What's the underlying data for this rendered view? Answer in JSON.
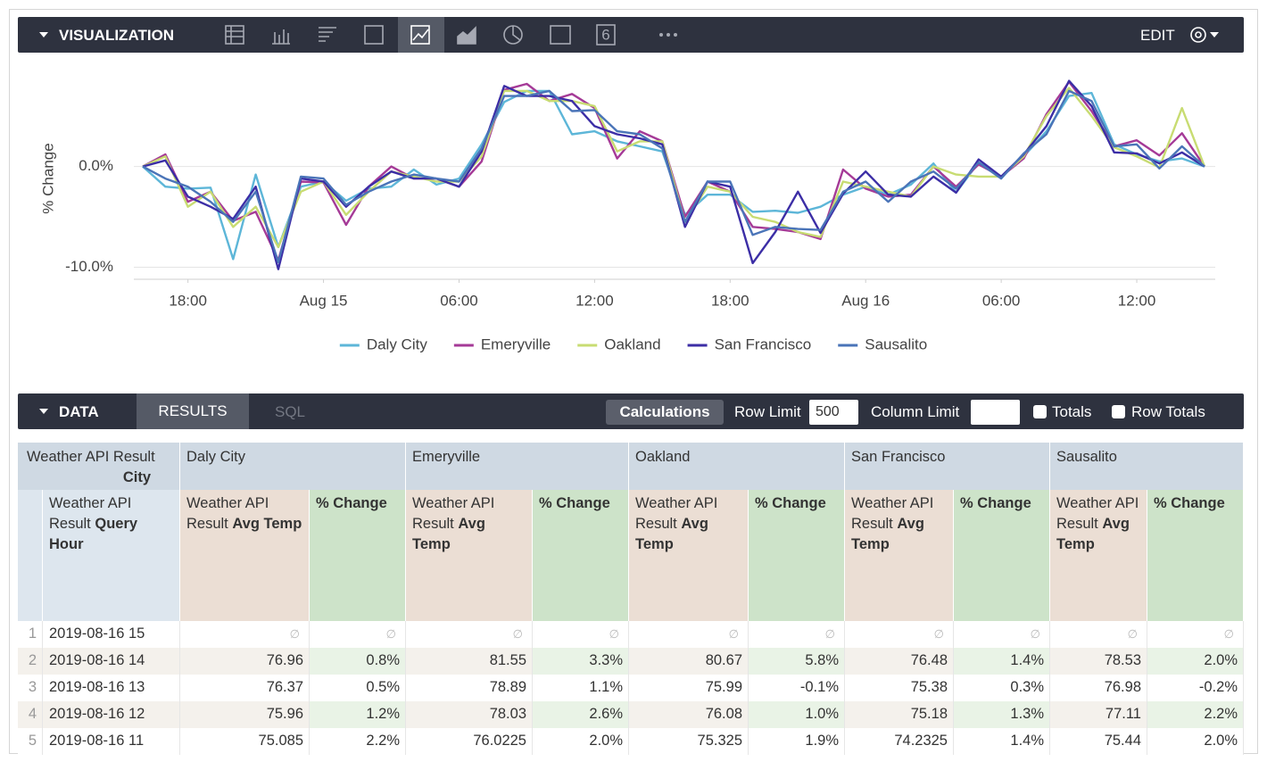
{
  "toolbar": {
    "title": "VISUALIZATION",
    "single_value_icon": "6",
    "edit": "EDIT"
  },
  "chart_data": {
    "type": "line",
    "y_label": "% Change",
    "x": [
      "2019-08-14 16",
      "2019-08-14 17",
      "2019-08-14 18",
      "2019-08-14 19",
      "2019-08-14 20",
      "2019-08-14 21",
      "2019-08-14 22",
      "2019-08-14 23",
      "2019-08-15 00",
      "2019-08-15 01",
      "2019-08-15 02",
      "2019-08-15 03",
      "2019-08-15 04",
      "2019-08-15 05",
      "2019-08-15 06",
      "2019-08-15 07",
      "2019-08-15 08",
      "2019-08-15 09",
      "2019-08-15 10",
      "2019-08-15 11",
      "2019-08-15 12",
      "2019-08-15 13",
      "2019-08-15 14",
      "2019-08-15 15",
      "2019-08-15 16",
      "2019-08-15 17",
      "2019-08-15 18",
      "2019-08-15 19",
      "2019-08-15 20",
      "2019-08-15 21",
      "2019-08-15 22",
      "2019-08-15 23",
      "2019-08-16 00",
      "2019-08-16 01",
      "2019-08-16 02",
      "2019-08-16 03",
      "2019-08-16 04",
      "2019-08-16 05",
      "2019-08-16 06",
      "2019-08-16 07",
      "2019-08-16 08",
      "2019-08-16 09",
      "2019-08-16 10",
      "2019-08-16 11",
      "2019-08-16 12",
      "2019-08-16 13",
      "2019-08-16 14",
      "2019-08-16 15"
    ],
    "xticks": [
      {
        "value": "2019-08-14 18",
        "label": "18:00"
      },
      {
        "value": "2019-08-15 00",
        "label": "Aug 15"
      },
      {
        "value": "2019-08-15 06",
        "label": "06:00"
      },
      {
        "value": "2019-08-15 12",
        "label": "12:00"
      },
      {
        "value": "2019-08-15 18",
        "label": "18:00"
      },
      {
        "value": "2019-08-16 00",
        "label": "Aug 16"
      },
      {
        "value": "2019-08-16 06",
        "label": "06:00"
      },
      {
        "value": "2019-08-16 12",
        "label": "12:00"
      }
    ],
    "ylim": [
      -11.2,
      9
    ],
    "yticks": [
      {
        "value": 0,
        "label": "0.0%"
      },
      {
        "value": -10,
        "label": "-10.0%"
      }
    ],
    "grid": true,
    "legend": "bottom",
    "series": [
      {
        "name": "Daly City",
        "color": "#5db6d8",
        "values": [
          0,
          -2.0,
          -2.2,
          -2.1,
          -9.2,
          -0.8,
          -8.0,
          -2.0,
          -1.5,
          -3.4,
          -2.2,
          -2.0,
          -0.3,
          -1.8,
          -1.2,
          2.2,
          6.4,
          7.5,
          7.5,
          3.2,
          3.5,
          2.5,
          2.0,
          1.5,
          -4.8,
          -2.8,
          -2.8,
          -4.5,
          -4.4,
          -4.6,
          -4.0,
          -2.8,
          -2.0,
          -2.8,
          -1.8,
          0.3,
          -2.6,
          0.4,
          -1.0,
          1.0,
          3.5,
          7.0,
          7.3,
          2.2,
          1.2,
          0.5,
          0.8,
          0
        ]
      },
      {
        "name": "Emeryville",
        "color": "#a53a97",
        "values": [
          0,
          1.2,
          -3.5,
          -2.5,
          -5.4,
          -4.5,
          -9.3,
          -1.5,
          -1.6,
          -5.8,
          -2.0,
          0.0,
          -1.2,
          -1.2,
          -2.0,
          0.5,
          7.6,
          8.2,
          6.5,
          7.2,
          5.8,
          0.8,
          3.5,
          2.5,
          -5.0,
          -1.5,
          -2.5,
          -6.0,
          -6.2,
          -6.5,
          -7.2,
          -0.3,
          -2.2,
          -3.0,
          -2.8,
          0.0,
          -2.0,
          0.2,
          -1.0,
          0.8,
          5.2,
          8.4,
          5.5,
          2.0,
          2.6,
          1.1,
          3.3,
          0
        ]
      },
      {
        "name": "Oakland",
        "color": "#c8dc72",
        "values": [
          0,
          1.0,
          -4.0,
          -2.5,
          -6.0,
          -4.0,
          -8.0,
          -2.5,
          -1.5,
          -4.8,
          -2.5,
          -0.5,
          -1.0,
          -1.5,
          -1.5,
          1.0,
          7.5,
          7.5,
          6.5,
          6.5,
          6.0,
          1.5,
          2.5,
          2.5,
          -5.5,
          -2.0,
          -2.5,
          -5.0,
          -5.5,
          -6.5,
          -7.0,
          -1.5,
          -2.0,
          -2.5,
          -3.0,
          0.0,
          -0.8,
          -1.0,
          -1.0,
          1.0,
          5.0,
          7.8,
          5.0,
          1.9,
          1.0,
          -0.1,
          5.8,
          0
        ]
      },
      {
        "name": "San Francisco",
        "color": "#3c2ea6",
        "values": [
          0,
          0.6,
          -3.0,
          -4.0,
          -5.2,
          -2.0,
          -10.2,
          -1.2,
          -1.5,
          -4.0,
          -2.0,
          -0.5,
          -1.2,
          -1.2,
          -2.0,
          1.5,
          8.0,
          7.0,
          7.0,
          6.5,
          4.0,
          3.2,
          2.8,
          2.2,
          -6.0,
          -1.5,
          -2.0,
          -9.6,
          -6.5,
          -2.5,
          -6.6,
          -2.7,
          -0.5,
          -2.8,
          -3.0,
          -1.0,
          -2.6,
          0.7,
          -1.0,
          1.2,
          4.0,
          8.5,
          6.0,
          1.4,
          1.3,
          0.3,
          1.4,
          0
        ]
      },
      {
        "name": "Sausalito",
        "color": "#4a74b8",
        "values": [
          0,
          -1.2,
          -2.0,
          -3.5,
          -5.5,
          -2.5,
          -9.5,
          -1.0,
          -1.2,
          -3.8,
          -2.5,
          -1.5,
          -0.8,
          -1.2,
          -1.5,
          1.8,
          7.0,
          7.0,
          7.5,
          5.5,
          5.6,
          3.5,
          3.2,
          1.8,
          -5.5,
          -1.5,
          -1.5,
          -6.8,
          -6.0,
          -6.2,
          -6.3,
          -2.5,
          -1.5,
          -3.5,
          -1.5,
          -0.5,
          -2.2,
          0.4,
          -1.2,
          1.3,
          3.2,
          7.5,
          6.5,
          2.0,
          2.2,
          -0.2,
          2.0,
          0
        ]
      }
    ]
  },
  "data_bar": {
    "title": "DATA",
    "tabs": [
      "RESULTS",
      "SQL"
    ],
    "calculations": "Calculations",
    "row_limit_label": "Row Limit",
    "row_limit": 500,
    "column_limit_label": "Column Limit",
    "checkboxes": [
      "Totals",
      "Row Totals"
    ]
  },
  "table": {
    "pivot_label": "Weather API Result",
    "pivot_name": "City",
    "pivots": [
      "Daly City",
      "Emeryville",
      "Oakland",
      "San Francisco",
      "Sausalito"
    ],
    "dimension": {
      "prefix": "Weather API Result",
      "name": "Query Hour"
    },
    "measure": {
      "prefix": "Weather API Result",
      "name": "Avg Temp"
    },
    "calculation": "% Change",
    "rows": [
      {
        "n": 1,
        "hour": "2019-08-16 15",
        "cells": [
          null,
          null,
          null,
          null,
          null,
          null,
          null,
          null,
          null,
          null
        ]
      },
      {
        "n": 2,
        "hour": "2019-08-16 14",
        "cells": [
          "76.96",
          "0.8%",
          "81.55",
          "3.3%",
          "80.67",
          "5.8%",
          "76.48",
          "1.4%",
          "78.53",
          "2.0%"
        ]
      },
      {
        "n": 3,
        "hour": "2019-08-16 13",
        "cells": [
          "76.37",
          "0.5%",
          "78.89",
          "1.1%",
          "75.99",
          "-0.1%",
          "75.38",
          "0.3%",
          "76.98",
          "-0.2%"
        ]
      },
      {
        "n": 4,
        "hour": "2019-08-16 12",
        "cells": [
          "75.96",
          "1.2%",
          "78.03",
          "2.6%",
          "76.08",
          "1.0%",
          "75.18",
          "1.3%",
          "77.11",
          "2.2%"
        ]
      },
      {
        "n": 5,
        "hour": "2019-08-16 11",
        "cells": [
          "75.085",
          "2.2%",
          "76.0225",
          "2.0%",
          "75.325",
          "1.9%",
          "74.2325",
          "1.4%",
          "75.44",
          "2.0%"
        ]
      }
    ]
  }
}
